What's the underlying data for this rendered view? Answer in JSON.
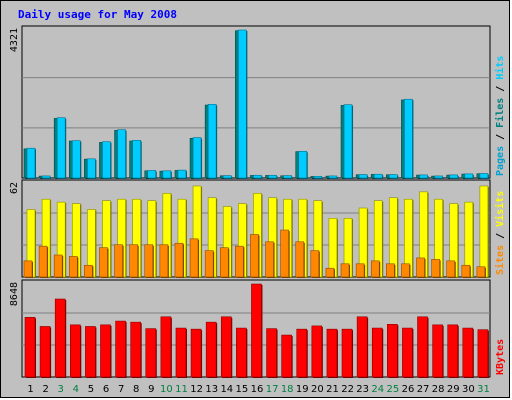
{
  "title": "Daily usage for May 2008",
  "colors": {
    "background": "#c0c0c0",
    "plot_bg": "#c0c0c0",
    "hits": "#00ccff",
    "files": "#008080",
    "pages": "#00a0d0",
    "visits": "#ffff00",
    "sites": "#ff8800",
    "kbytes": "#ff0000",
    "weekday_label": "#000000",
    "weekend_label": "#008040"
  },
  "chart_data": [
    {
      "type": "bar",
      "panel": "top",
      "ymax_label": "4321",
      "side_labels": [
        {
          "text": "Pages",
          "color": "#00a0d0"
        },
        {
          "text": " / ",
          "color": "#000000"
        },
        {
          "text": "Files",
          "color": "#008080"
        },
        {
          "text": " / ",
          "color": "#000000"
        },
        {
          "text": "Hits",
          "color": "#00ccff"
        }
      ],
      "ylim": [
        0,
        4321
      ],
      "categories": [
        "1",
        "2",
        "3",
        "4",
        "5",
        "6",
        "7",
        "8",
        "9",
        "10",
        "11",
        "12",
        "13",
        "14",
        "15",
        "16",
        "17",
        "18",
        "19",
        "20",
        "21",
        "22",
        "23",
        "24",
        "25",
        "26",
        "27",
        "28",
        "29",
        "30",
        "31"
      ],
      "series": [
        {
          "name": "Hits",
          "values": [
            870,
            60,
            1760,
            1090,
            560,
            1060,
            1410,
            1100,
            220,
            210,
            230,
            1180,
            2150,
            70,
            4321,
            80,
            80,
            70,
            780,
            50,
            60,
            2140,
            100,
            110,
            100,
            2300,
            90,
            60,
            90,
            120,
            130
          ]
        },
        {
          "name": "Files",
          "values": [
            850,
            55,
            1740,
            1080,
            550,
            1040,
            1390,
            1080,
            210,
            200,
            220,
            1160,
            2130,
            65,
            4300,
            75,
            75,
            65,
            770,
            45,
            55,
            2120,
            95,
            105,
            95,
            2280,
            85,
            55,
            85,
            115,
            125
          ]
        }
      ]
    },
    {
      "type": "bar",
      "panel": "middle",
      "ymax_label": "62",
      "side_labels": [
        {
          "text": "Sites",
          "color": "#ff8800"
        },
        {
          "text": " / ",
          "color": "#000000"
        },
        {
          "text": "Visits",
          "color": "#ffff00"
        }
      ],
      "ylim": [
        0,
        62
      ],
      "categories": [
        "1",
        "2",
        "3",
        "4",
        "5",
        "6",
        "7",
        "8",
        "9",
        "10",
        "11",
        "12",
        "13",
        "14",
        "15",
        "16",
        "17",
        "18",
        "19",
        "20",
        "21",
        "22",
        "23",
        "24",
        "25",
        "26",
        "27",
        "28",
        "29",
        "30",
        "31"
      ],
      "series": [
        {
          "name": "Visits",
          "values": [
            46,
            53,
            51,
            50,
            46,
            52,
            53,
            53,
            52,
            57,
            53,
            62,
            54,
            48,
            50,
            57,
            54,
            53,
            53,
            52,
            40,
            40,
            47,
            52,
            54,
            53,
            58,
            53,
            50,
            51,
            62
          ]
        },
        {
          "name": "Sites",
          "values": [
            11,
            21,
            15,
            14,
            8,
            20,
            22,
            22,
            22,
            22,
            23,
            26,
            18,
            20,
            21,
            29,
            24,
            32,
            24,
            18,
            6,
            9,
            9,
            11,
            9,
            9,
            13,
            12,
            11,
            8,
            7
          ]
        }
      ]
    },
    {
      "type": "bar",
      "panel": "bottom",
      "ymax_label": "8648",
      "side_labels": [
        {
          "text": "KBytes",
          "color": "#ff0000"
        }
      ],
      "ylim": [
        0,
        8648
      ],
      "categories": [
        "1",
        "2",
        "3",
        "4",
        "5",
        "6",
        "7",
        "8",
        "9",
        "10",
        "11",
        "12",
        "13",
        "14",
        "15",
        "16",
        "17",
        "18",
        "19",
        "20",
        "21",
        "22",
        "23",
        "24",
        "25",
        "26",
        "27",
        "28",
        "29",
        "30",
        "31"
      ],
      "series": [
        {
          "name": "KBytes",
          "values": [
            5550,
            4700,
            7250,
            4850,
            4700,
            4850,
            5200,
            5100,
            4500,
            5600,
            4550,
            4450,
            5100,
            5600,
            4550,
            8648,
            4500,
            3900,
            4450,
            4750,
            4450,
            4450,
            5600,
            4550,
            4900,
            4550,
            5600,
            4850,
            4850,
            4550,
            4400
          ]
        }
      ]
    }
  ],
  "x_labels": [
    {
      "text": "1",
      "weekend": false
    },
    {
      "text": "2",
      "weekend": false
    },
    {
      "text": "3",
      "weekend": true
    },
    {
      "text": "4",
      "weekend": true
    },
    {
      "text": "5",
      "weekend": false
    },
    {
      "text": "6",
      "weekend": false
    },
    {
      "text": "7",
      "weekend": false
    },
    {
      "text": "8",
      "weekend": false
    },
    {
      "text": "9",
      "weekend": false
    },
    {
      "text": "10",
      "weekend": true
    },
    {
      "text": "11",
      "weekend": true
    },
    {
      "text": "12",
      "weekend": false
    },
    {
      "text": "13",
      "weekend": false
    },
    {
      "text": "14",
      "weekend": false
    },
    {
      "text": "15",
      "weekend": false
    },
    {
      "text": "16",
      "weekend": false
    },
    {
      "text": "17",
      "weekend": true
    },
    {
      "text": "18",
      "weekend": true
    },
    {
      "text": "19",
      "weekend": false
    },
    {
      "text": "20",
      "weekend": false
    },
    {
      "text": "21",
      "weekend": false
    },
    {
      "text": "22",
      "weekend": false
    },
    {
      "text": "23",
      "weekend": false
    },
    {
      "text": "24",
      "weekend": true
    },
    {
      "text": "25",
      "weekend": true
    },
    {
      "text": "26",
      "weekend": false
    },
    {
      "text": "27",
      "weekend": false
    },
    {
      "text": "28",
      "weekend": false
    },
    {
      "text": "29",
      "weekend": false
    },
    {
      "text": "30",
      "weekend": false
    },
    {
      "text": "31",
      "weekend": true
    }
  ]
}
